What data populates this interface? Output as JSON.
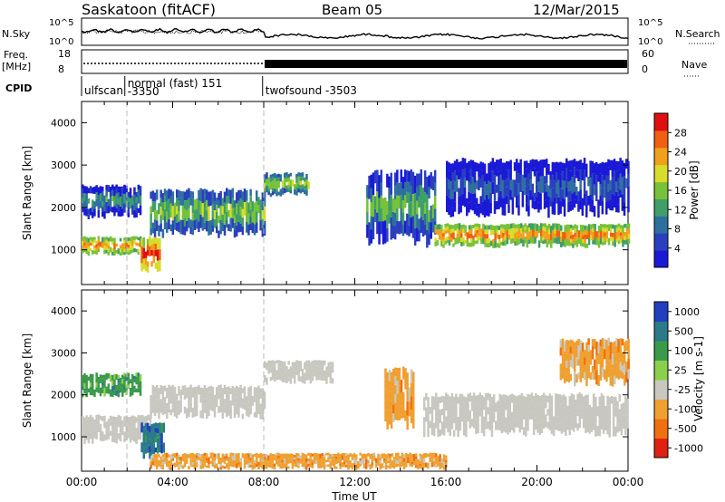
{
  "header": {
    "title_left": "Saskatoon (fitACF)",
    "title_center": "Beam 05",
    "title_right": "12/Mar/2015"
  },
  "strip_labels": {
    "nsky": "N.Sky",
    "nsearch": "N.Search",
    "freq": "Freq.",
    "freq_unit": "[MHz]",
    "nave": "Nave",
    "cpid": "CPID"
  },
  "strip_ticks": {
    "nsky_top": "10^5",
    "nsky_bottom": "10^0",
    "nsearch_top": "10^5",
    "nsearch_bottom": "10^0",
    "freq_top": "18",
    "freq_bottom": "8",
    "nave_top": "60",
    "nave_bottom": "0"
  },
  "cpid_segments": [
    {
      "start_hour": 0.0,
      "end_hour": 1.0,
      "label": "ulfscan",
      "sublabel": ""
    },
    {
      "start_hour": 1.9,
      "end_hour": 7.95,
      "label": "normal (fast) 151",
      "sublabel": "-3350"
    },
    {
      "start_hour": 7.95,
      "end_hour": 24.0,
      "label": "twofsound -3503",
      "sublabel": ""
    }
  ],
  "chart_data": [
    {
      "type": "heatmap",
      "title": "",
      "xlabel": "",
      "ylabel": "Slant Range [km]",
      "xlim": [
        0,
        24
      ],
      "ylim": [
        180,
        4500
      ],
      "yticks": [
        "1000",
        "2000",
        "3000",
        "4000"
      ],
      "colorbar": {
        "label": "Power [dB]",
        "ticks": [
          "4",
          "8",
          "12",
          "16",
          "20",
          "24",
          "28"
        ],
        "range": [
          0,
          30
        ],
        "colors": [
          "#1a1ad6",
          "#2a3fbf",
          "#2f6fa0",
          "#3f9f6a",
          "#78c23a",
          "#d8dc2a",
          "#f0a01a",
          "#f06010",
          "#e01010"
        ]
      },
      "bands": [
        {
          "t0": 0.0,
          "t1": 2.6,
          "r0": 900,
          "r1": 1300,
          "value": 24
        },
        {
          "t0": 0.0,
          "t1": 2.6,
          "r0": 1800,
          "r1": 2500,
          "value": 12
        },
        {
          "t0": 2.6,
          "t1": 3.4,
          "r0": 550,
          "r1": 1300,
          "value": 28
        },
        {
          "t0": 3.0,
          "t1": 8.0,
          "r0": 1400,
          "r1": 2400,
          "value": 16
        },
        {
          "t0": 8.0,
          "t1": 10.0,
          "r0": 2300,
          "r1": 2800,
          "value": 18
        },
        {
          "t0": 12.5,
          "t1": 15.5,
          "r0": 1200,
          "r1": 2800,
          "value": 14
        },
        {
          "t0": 15.5,
          "t1": 24.0,
          "r0": 1100,
          "r1": 1600,
          "value": 24
        },
        {
          "t0": 16.0,
          "t1": 24.0,
          "r0": 1900,
          "r1": 3100,
          "value": 8
        }
      ]
    },
    {
      "type": "heatmap",
      "title": "",
      "xlabel": "Time UT",
      "ylabel": "Slant Range [km]",
      "xlim": [
        0,
        24
      ],
      "ylim": [
        180,
        4500
      ],
      "yticks": [
        "1000",
        "2000",
        "3000",
        "4000"
      ],
      "xticks": [
        "00:00",
        "04:00",
        "08:00",
        "12:00",
        "16:00",
        "20:00",
        "00:00"
      ],
      "colorbar": {
        "label": "Velocity [m s-1]",
        "ticks": [
          "1000",
          "500",
          "100",
          "25",
          "-25",
          "-100",
          "-500",
          "-1000"
        ],
        "colors": [
          "#2040c0",
          "#2a7a8a",
          "#3a9a4a",
          "#8ad04a",
          "#c8c8c0",
          "#f0a030",
          "#f07010",
          "#e02010"
        ]
      },
      "bands": [
        {
          "t0": 0.0,
          "t1": 2.6,
          "r0": 2000,
          "r1": 2500,
          "value": "100"
        },
        {
          "t0": 0.0,
          "t1": 3.0,
          "r0": 900,
          "r1": 1500,
          "value": "ground"
        },
        {
          "t0": 2.6,
          "t1": 3.6,
          "r0": 550,
          "r1": 1300,
          "value": "500"
        },
        {
          "t0": 3.0,
          "t1": 8.0,
          "r0": 1500,
          "r1": 2200,
          "value": "ground"
        },
        {
          "t0": 8.0,
          "t1": 11.0,
          "r0": 2300,
          "r1": 2800,
          "value": "ground"
        },
        {
          "t0": 13.3,
          "t1": 14.6,
          "r0": 1300,
          "r1": 2600,
          "value": "-100"
        },
        {
          "t0": 15.0,
          "t1": 24.0,
          "r0": 1100,
          "r1": 2000,
          "value": "ground"
        },
        {
          "t0": 3.0,
          "t1": 16.0,
          "r0": 250,
          "r1": 600,
          "value": "-100"
        },
        {
          "t0": 21.0,
          "t1": 24.0,
          "r0": 2300,
          "r1": 3300,
          "value": "-100"
        }
      ]
    }
  ]
}
